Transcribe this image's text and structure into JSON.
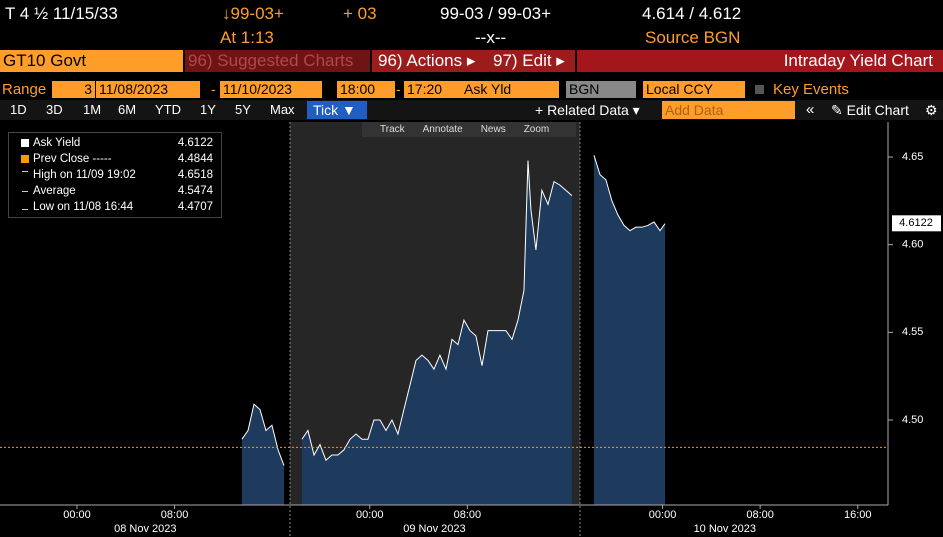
{
  "header": {
    "security": "T 4 ½ 11/15/33",
    "price_change_arrow": "↓99-03+",
    "change": "+ 03",
    "bid_ask": "99-03 / 99-03+",
    "yields": "4.614 / 4.612",
    "time": "At 1:13",
    "size": "--x--",
    "source": "Source BGN"
  },
  "menu": {
    "ticker": "GT10 Govt",
    "suggested": "96) Suggested Charts",
    "actions": "96) Actions ▸",
    "edit": "97) Edit ▸",
    "title": "Intraday Yield Chart"
  },
  "controls": {
    "range_label": "Range",
    "range_value": "3",
    "start_date": "11/08/2023",
    "dash1": "-",
    "end_date": "11/10/2023",
    "start_time": "18:00",
    "dash2": "-",
    "end_time": "17:20",
    "field": "Ask Yld",
    "source": "BGN",
    "currency": "Local CCY",
    "key_events": "Key Events"
  },
  "periods": [
    "1D",
    "3D",
    "1M",
    "6M",
    "YTD",
    "1Y",
    "5Y",
    "Max"
  ],
  "tick": "Tick ▼",
  "related": "+ Related Data ▾",
  "add_data": "Add Data",
  "collapse": "«",
  "edit_chart": "✎ Edit Chart",
  "settings": "⚙",
  "chart_tools": [
    "Track",
    "Annotate",
    "News",
    "Zoom"
  ],
  "chart_data": {
    "type": "area",
    "x": [
      13.52,
      14.02,
      14.51,
      15.0,
      15.49,
      15.98,
      16.48,
      16.97,
      17.5,
      18.44,
      18.93,
      19.43,
      19.92,
      20.41,
      20.9,
      21.39,
      21.89,
      22.38,
      22.87,
      23.36,
      23.85,
      24.34,
      24.84,
      25.33,
      25.82,
      26.31,
      26.8,
      27.3,
      27.79,
      28.28,
      28.77,
      29.26,
      29.75,
      30.25,
      30.74,
      31.23,
      31.72,
      32.21,
      32.7,
      33.2,
      33.69,
      34.18,
      34.67,
      35.16,
      35.66,
      36.15,
      36.64,
      36.97,
      37.21,
      37.62,
      38.11,
      38.61,
      39.1,
      39.59,
      40.08,
      40.57,
      41.2,
      42.38,
      42.87,
      43.36,
      43.85,
      44.34,
      44.84,
      45.33,
      45.82,
      46.31,
      46.8,
      47.3,
      47.79,
      48.2
    ],
    "series": [
      {
        "name": "Ask Yield",
        "color": "#ffffff",
        "fill": "#1e3b5e",
        "values": [
          4.489,
          4.494,
          4.509,
          4.506,
          4.494,
          4.497,
          4.483,
          4.474,
          null,
          4.489,
          4.494,
          4.48,
          4.486,
          4.477,
          4.48,
          4.48,
          4.483,
          4.489,
          4.492,
          4.489,
          4.489,
          4.5,
          4.5,
          4.494,
          4.5,
          4.492,
          4.506,
          4.52,
          4.534,
          4.537,
          4.534,
          4.529,
          4.537,
          4.529,
          4.546,
          4.543,
          4.557,
          4.551,
          4.548,
          4.531,
          4.551,
          4.551,
          4.551,
          4.551,
          4.546,
          4.557,
          4.574,
          4.648,
          4.62,
          4.597,
          4.631,
          4.623,
          4.636,
          4.634,
          4.631,
          4.628,
          null,
          4.651,
          4.64,
          4.637,
          4.625,
          4.617,
          4.611,
          4.608,
          4.61,
          4.61,
          4.611,
          4.613,
          4.608,
          4.612
        ]
      }
    ],
    "legend": [
      {
        "label": "Ask Yield",
        "value": 4.6122
      },
      {
        "label": "Prev Close -----",
        "value": 4.4844
      },
      {
        "label": "High on 11/09 19:02",
        "value": 4.6518
      },
      {
        "label": "Average",
        "value": 4.5474
      },
      {
        "label": "Low on 11/08 16:44",
        "value": 4.4707
      }
    ],
    "reference_color": "#ff9900",
    "xlim": [
      -6.31,
      66.48
    ],
    "xticks": [
      {
        "value": 0,
        "label": "00:00"
      },
      {
        "value": 8,
        "label": "08:00"
      },
      {
        "value": 24,
        "label": "00:00"
      },
      {
        "value": 32,
        "label": "08:00"
      },
      {
        "value": 48,
        "label": "00:00"
      },
      {
        "value": 56,
        "label": "08:00"
      },
      {
        "value": 64,
        "label": "16:00"
      }
    ],
    "xdates": [
      {
        "value": 5.6,
        "label": "08 Nov 2023"
      },
      {
        "value": 29.3,
        "label": "09 Nov 2023"
      },
      {
        "value": 53.1,
        "label": "10 Nov 2023"
      }
    ],
    "ylim": [
      4.4515,
      4.67
    ],
    "yticks": [
      {
        "value": 4.5,
        "label": "4.50"
      },
      4.55,
      {
        "value": 4.6,
        "label": "4.60"
      },
      4.65
    ]
  }
}
